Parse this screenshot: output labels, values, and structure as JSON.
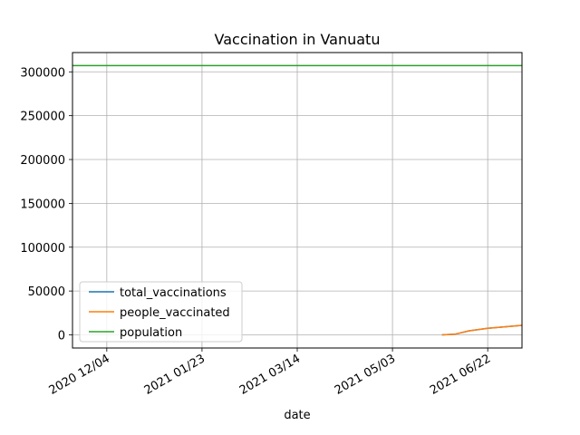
{
  "chart_data": {
    "type": "line",
    "title": "Vaccination in Vanuatu",
    "xlabel": "date",
    "ylabel": "",
    "x_range": [
      "2020-11-16",
      "2021-07-10"
    ],
    "ylim": [
      -15000,
      322000
    ],
    "grid": true,
    "legend_position": "lower-left",
    "x_ticks": [
      {
        "date": "2020-12-04",
        "label": "2020 12/04"
      },
      {
        "date": "2021-01-23",
        "label": "2021 01/23"
      },
      {
        "date": "2021-03-14",
        "label": "2021 03/14"
      },
      {
        "date": "2021-05-03",
        "label": "2021 05/03"
      },
      {
        "date": "2021-06-22",
        "label": "2021 06/22"
      }
    ],
    "y_ticks": [
      0,
      50000,
      100000,
      150000,
      200000,
      250000,
      300000
    ],
    "series": [
      {
        "name": "total_vaccinations",
        "color": "#1f77b4",
        "points": [
          {
            "x": "2021-05-29",
            "y": 0
          },
          {
            "x": "2021-06-05",
            "y": 800
          },
          {
            "x": "2021-06-12",
            "y": 4500
          },
          {
            "x": "2021-06-22",
            "y": 7500
          },
          {
            "x": "2021-07-10",
            "y": 10800
          }
        ]
      },
      {
        "name": "people_vaccinated",
        "color": "#ff7f0e",
        "points": [
          {
            "x": "2021-05-29",
            "y": 0
          },
          {
            "x": "2021-06-05",
            "y": 800
          },
          {
            "x": "2021-06-12",
            "y": 4500
          },
          {
            "x": "2021-06-22",
            "y": 7500
          },
          {
            "x": "2021-07-10",
            "y": 10800
          }
        ]
      },
      {
        "name": "population",
        "color": "#2ca02c",
        "points": [
          {
            "x": "2020-11-16",
            "y": 307150
          },
          {
            "x": "2021-07-10",
            "y": 307150
          }
        ]
      }
    ]
  }
}
